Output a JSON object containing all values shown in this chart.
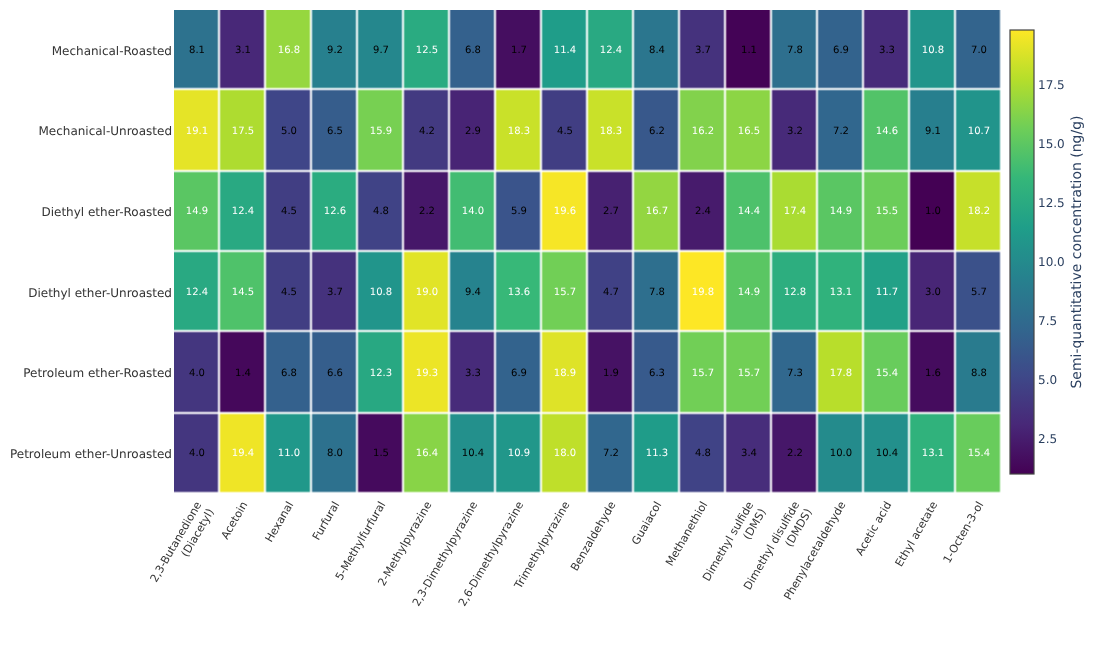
{
  "chart_data": {
    "type": "heatmap",
    "clabel": "Semi-quantitative concentration (ng/g)",
    "categories": [
      "2,3-Butanedione (Diacetyl)",
      "Acetoin",
      "Hexanal",
      "Furfural",
      "5-Methylfurfural",
      "2-Methylpyrazine",
      "2,3-Dimethylpyrazine",
      "2,6-Dimethylpyrazine",
      "Trimethylpyrazine",
      "Benzaldehyde",
      "Guaiacol",
      "Methanethiol",
      "Dimethyl sulfide (DMS)",
      "Dimethyl disulfide (DMDS)",
      "Phenylacetaldehyde",
      "Acetic acid",
      "Ethyl acetate",
      "1-Octen-3-ol"
    ],
    "y_categories": [
      "Mechanical-Roasted",
      "Mechanical-Unroasted",
      "Diethyl ether-Roasted",
      "Diethyl ether-Unroasted",
      "Petroleum ether-Roasted",
      "Petroleum ether-Unroasted"
    ],
    "cells": [
      [
        8.1,
        3.1,
        16.8,
        9.2,
        9.7,
        12.5,
        6.8,
        1.7,
        11.4,
        12.4,
        8.4,
        3.7,
        1.1,
        7.8,
        6.9,
        3.3,
        10.8,
        7.0
      ],
      [
        19.1,
        17.5,
        5.0,
        6.5,
        15.9,
        4.2,
        2.9,
        18.3,
        4.5,
        18.3,
        6.2,
        16.2,
        16.5,
        3.2,
        7.2,
        14.6,
        9.1,
        10.7
      ],
      [
        14.9,
        12.4,
        4.5,
        12.6,
        4.8,
        2.2,
        14.0,
        5.9,
        19.6,
        2.7,
        16.7,
        2.4,
        14.4,
        17.4,
        14.9,
        15.5,
        1.0,
        18.2
      ],
      [
        12.4,
        14.5,
        4.5,
        3.7,
        10.8,
        19.0,
        9.4,
        13.6,
        15.7,
        4.7,
        7.8,
        19.8,
        14.9,
        12.8,
        13.1,
        11.7,
        3.0,
        5.7
      ],
      [
        4.0,
        1.4,
        6.8,
        6.6,
        12.3,
        19.3,
        3.3,
        6.9,
        18.9,
        1.9,
        6.3,
        15.7,
        15.7,
        7.3,
        17.8,
        15.4,
        1.6,
        8.8
      ],
      [
        4.0,
        19.4,
        11.0,
        8.0,
        1.5,
        16.4,
        10.4,
        10.9,
        18.0,
        7.2,
        11.3,
        4.8,
        3.4,
        2.2,
        10.0,
        10.4,
        13.1,
        15.4
      ]
    ],
    "cell_labels": [
      [
        "8.1",
        "3.1",
        "16.8",
        "9.2",
        "9.7",
        "12.5",
        "6.8",
        "1.7",
        "11.4",
        "12.4",
        "8.4",
        "3.7",
        "1.1",
        "7.8",
        "6.9",
        "3.3",
        "10.8",
        "7.0"
      ],
      [
        "19.1",
        "17.5",
        "5.0",
        "6.5",
        "15.9",
        "4.2",
        "2.9",
        "18.3",
        "4.5",
        "18.3",
        "6.2",
        "16.2",
        "16.5",
        "3.2",
        "7.2",
        "14.6",
        "9.1",
        "10.7"
      ],
      [
        "14.9",
        "12.4",
        "4.5",
        "12.6",
        "4.8",
        "2.2",
        "14.0",
        "5.9",
        "19.6",
        "2.7",
        "16.7",
        "2.4",
        "14.4",
        "17.4",
        "14.9",
        "15.5",
        "1.0",
        "18.2"
      ],
      [
        "12.4",
        "14.5",
        "4.5",
        "3.7",
        "10.8",
        "19.0",
        "9.4",
        "13.6",
        "15.7",
        "4.7",
        "7.8",
        "19.8",
        "14.9",
        "12.8",
        "13.1",
        "11.7",
        "3.0",
        "5.7"
      ],
      [
        "4.0",
        "1.4",
        "6.8",
        "6.6",
        "12.3",
        "19.3",
        "3.3",
        "6.9",
        "18.9",
        "1.9",
        "6.3",
        "15.7",
        "15.7",
        "7.3",
        "17.8",
        "15.4",
        "1.6",
        "8.8"
      ],
      [
        "4.0",
        "19.4",
        "11.0",
        "8.0",
        "1.5",
        "16.4",
        "10.4",
        "10.9",
        "18.0",
        "7.2",
        "11.3",
        "4.8",
        "3.4",
        "2.2",
        "10.0",
        "10.4",
        "13.1",
        "15.4"
      ]
    ],
    "clim": [
      1.0,
      19.8
    ],
    "cticks": [
      2.5,
      {
        "value": 5,
        "label": "5.0"
      },
      7.5,
      {
        "value": 10,
        "label": "10.0"
      },
      12.5,
      {
        "value": 15,
        "label": "15.0"
      },
      17.5
    ],
    "data_labels": true
  }
}
